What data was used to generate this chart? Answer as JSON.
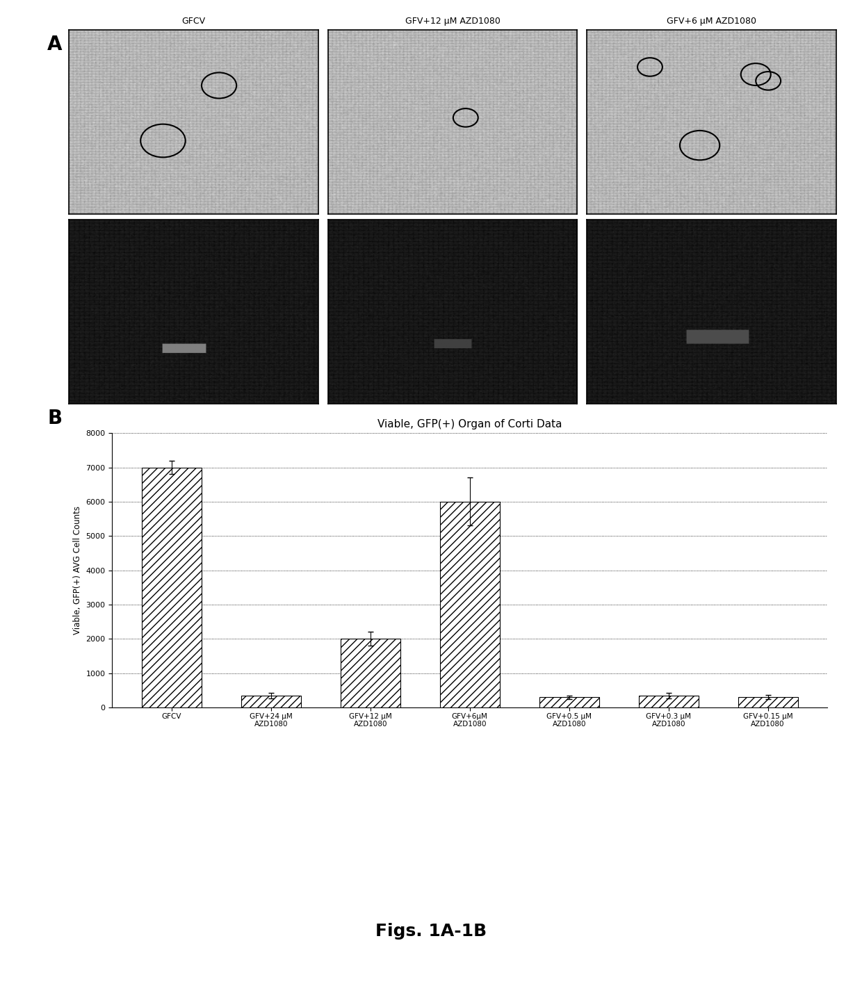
{
  "fig_width": 12.4,
  "fig_height": 14.26,
  "panel_a_label": "A",
  "panel_b_label": "B",
  "panel_a_col_labels": [
    "GFCV",
    "GFV+12 μM AZD1080",
    "GFV+6 μM AZD1080"
  ],
  "chart_title": "Viable, GFP(+) Organ of Corti Data",
  "ylabel": "Viable, GFP(+) AVG Cell Counts",
  "bar_categories": [
    "GFCV",
    "GFV+24 μM\nAZD1080",
    "GFV+12 μM\nAZD1080",
    "GFV+6μM\nAZD1080",
    "GFV+0.5 μM\nAZD1080",
    "GFV+0.3 μM\nAZD1080",
    "GFV+0.15 μM\nAZD1080"
  ],
  "bar_values": [
    7000,
    350,
    2000,
    6000,
    300,
    350,
    300
  ],
  "bar_errors": [
    200,
    80,
    200,
    700,
    50,
    80,
    60
  ],
  "ylim": [
    0,
    8000
  ],
  "yticks": [
    0,
    1000,
    2000,
    3000,
    4000,
    5000,
    6000,
    7000,
    8000
  ],
  "bar_hatch": "///",
  "background_color": "#ffffff",
  "fig_label": "Figs. 1A-1B"
}
